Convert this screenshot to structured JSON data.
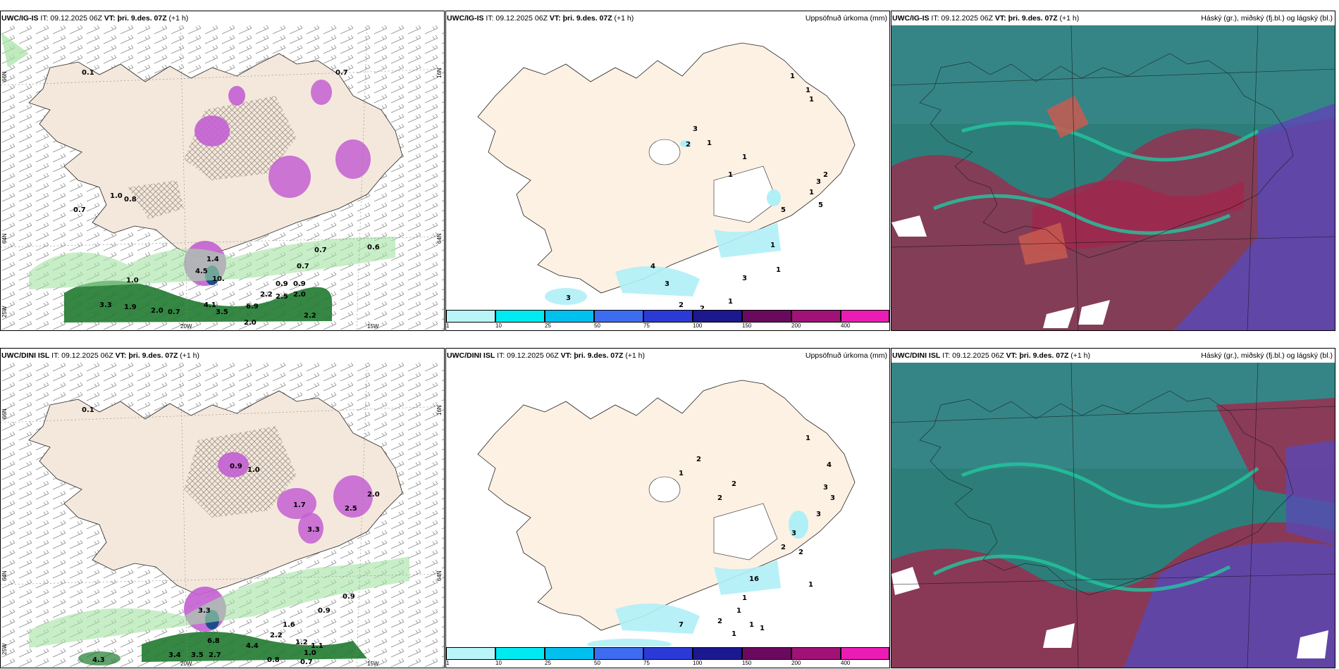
{
  "rows": [
    {
      "precip": {
        "model": "UWC/IG-IS",
        "it_prefix": "IT: 09.12.2025 06Z",
        "vt_label": "VT: þri. 9.des. 07Z",
        "lead": "(+1 h)",
        "labels": [
          "0.1",
          "1.0",
          "0.8",
          "0.7",
          "0.7",
          "0.6",
          "0.7",
          "0.7",
          "1.4",
          "4.5",
          "10.",
          "0.9",
          "0.9",
          "2.2",
          "2.5",
          "2.0",
          "3.3",
          "1.9",
          "4.1",
          "3.5",
          "6.9",
          "0.7",
          "2.0",
          "2.2",
          "2.0",
          "1.0"
        ],
        "lon_labels": [
          "20W",
          "15W"
        ],
        "lat_labels": [
          "66N",
          "64N",
          "25W",
          "16N",
          "64N"
        ]
      },
      "accum": {
        "model": "UWC/IG-IS",
        "it_prefix": "IT: 09.12.2025 06Z",
        "vt_label": "VT: þri. 9.des. 07Z",
        "lead": "(+1 h)",
        "title_right": "Uppsöfnuð úrkoma (mm)",
        "labels": [
          "1",
          "1",
          "1",
          "3",
          "1",
          "2",
          "1",
          "1",
          "2",
          "3",
          "1",
          "5",
          "5",
          "1",
          "1",
          "3",
          "4",
          "3",
          "2",
          "2",
          "1",
          "3"
        ]
      },
      "cloud": {
        "model": "UWC/IG-IS",
        "it_prefix": "IT: 09.12.2025 06Z",
        "vt_label": "VT: þri. 9.des. 07Z",
        "lead": "(+1 h)",
        "title_right": "Háský (gr.), miðský (fj.bl.) og lágský (bl.)"
      }
    },
    {
      "precip": {
        "model": "UWC/DINI ISL",
        "it_prefix": "IT: 09.12.2025 06Z",
        "vt_label": "VT: þri. 9.des. 07Z",
        "lead": "(+1 h)",
        "labels": [
          "0.1",
          "0.9",
          "1.0",
          "1.7",
          "2.5",
          "3.3",
          "2.0",
          "3.3",
          "6.8",
          "4.4",
          "2.2",
          "1.6",
          "1.2",
          "1.1",
          "1.0",
          "0.8",
          "0.9",
          "0.9",
          "3.4",
          "3.5",
          "2.7",
          "4.3",
          "0.7"
        ],
        "lon_labels": [
          "20W",
          "15W"
        ],
        "lat_labels": [
          "66N",
          "64N",
          "25W",
          "16N",
          "64N"
        ]
      },
      "accum": {
        "model": "UWC/DINI ISL",
        "it_prefix": "IT: 09.12.2025 06Z",
        "vt_label": "VT: þri. 9.des. 07Z",
        "lead": "(+1 h)",
        "title_right": "Uppsöfnuð úrkoma (mm)",
        "labels": [
          "1",
          "2",
          "1",
          "2",
          "2",
          "4",
          "3",
          "3",
          "3",
          "2",
          "3",
          "2",
          "16",
          "1",
          "1",
          "1",
          "7",
          "2",
          "1",
          "1",
          "1"
        ]
      },
      "cloud": {
        "model": "UWC/DINI ISL",
        "it_prefix": "IT: 09.12.2025 06Z",
        "vt_label": "VT: þri. 9.des. 07Z",
        "lead": "(+1 h)",
        "title_right": "Háský (gr.), miðský (fj.bl.) og lágský (bl.)"
      }
    }
  ],
  "colorbar": {
    "ticks": [
      "1",
      "10",
      "25",
      "50",
      "75",
      "100",
      "150",
      "200",
      "400"
    ],
    "colors": [
      "#b8f4f8",
      "#00eaf2",
      "#00c0f0",
      "#3e6cf0",
      "#2b3ad6",
      "#1c1890",
      "#6a0a5e",
      "#a01276",
      "#ea1cb4",
      "#f7a8ee"
    ]
  },
  "colors": {
    "land": "#f4e8dc",
    "land_acc": "#fdf1e4",
    "rain_green": "#1f7a2f",
    "rain_light": "#a4e2a4",
    "snow_purple": "#c35fd2",
    "cloud_teal": "#2d7e7a",
    "cloud_red": "#a0284c",
    "cloud_blue": "#5a48b4"
  }
}
